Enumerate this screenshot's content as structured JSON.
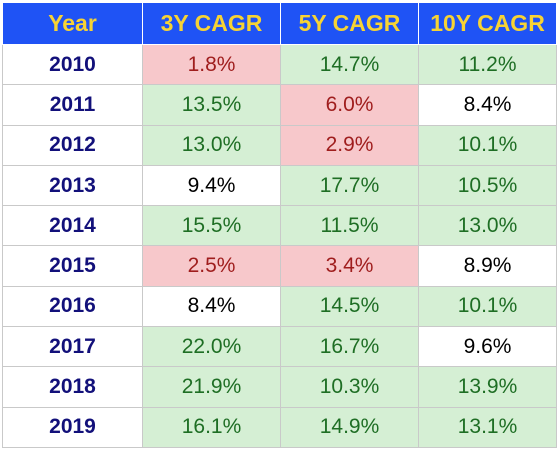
{
  "chart_data": {
    "type": "table",
    "columns": [
      "Year",
      "3Y CAGR",
      "5Y CAGR",
      "10Y CAGR"
    ],
    "rows": [
      {
        "year": "2010",
        "cells": [
          {
            "text": "1.8%",
            "value": 1.8,
            "status": "red"
          },
          {
            "text": "14.7%",
            "value": 14.7,
            "status": "green"
          },
          {
            "text": "11.2%",
            "value": 11.2,
            "status": "green"
          }
        ]
      },
      {
        "year": "2011",
        "cells": [
          {
            "text": "13.5%",
            "value": 13.5,
            "status": "green"
          },
          {
            "text": "6.0%",
            "value": 6.0,
            "status": "red"
          },
          {
            "text": "8.4%",
            "value": 8.4,
            "status": "neutral"
          }
        ]
      },
      {
        "year": "2012",
        "cells": [
          {
            "text": "13.0%",
            "value": 13.0,
            "status": "green"
          },
          {
            "text": "2.9%",
            "value": 2.9,
            "status": "red"
          },
          {
            "text": "10.1%",
            "value": 10.1,
            "status": "green"
          }
        ]
      },
      {
        "year": "2013",
        "cells": [
          {
            "text": "9.4%",
            "value": 9.4,
            "status": "neutral"
          },
          {
            "text": "17.7%",
            "value": 17.7,
            "status": "green"
          },
          {
            "text": "10.5%",
            "value": 10.5,
            "status": "green"
          }
        ]
      },
      {
        "year": "2014",
        "cells": [
          {
            "text": "15.5%",
            "value": 15.5,
            "status": "green"
          },
          {
            "text": "11.5%",
            "value": 11.5,
            "status": "green"
          },
          {
            "text": "13.0%",
            "value": 13.0,
            "status": "green"
          }
        ]
      },
      {
        "year": "2015",
        "cells": [
          {
            "text": "2.5%",
            "value": 2.5,
            "status": "red"
          },
          {
            "text": "3.4%",
            "value": 3.4,
            "status": "red"
          },
          {
            "text": "8.9%",
            "value": 8.9,
            "status": "neutral"
          }
        ]
      },
      {
        "year": "2016",
        "cells": [
          {
            "text": "8.4%",
            "value": 8.4,
            "status": "neutral"
          },
          {
            "text": "14.5%",
            "value": 14.5,
            "status": "green"
          },
          {
            "text": "10.1%",
            "value": 10.1,
            "status": "green"
          }
        ]
      },
      {
        "year": "2017",
        "cells": [
          {
            "text": "22.0%",
            "value": 22.0,
            "status": "green"
          },
          {
            "text": "16.7%",
            "value": 16.7,
            "status": "green"
          },
          {
            "text": "9.6%",
            "value": 9.6,
            "status": "neutral"
          }
        ]
      },
      {
        "year": "2018",
        "cells": [
          {
            "text": "21.9%",
            "value": 21.9,
            "status": "green"
          },
          {
            "text": "10.3%",
            "value": 10.3,
            "status": "green"
          },
          {
            "text": "13.9%",
            "value": 13.9,
            "status": "green"
          }
        ]
      },
      {
        "year": "2019",
        "cells": [
          {
            "text": "16.1%",
            "value": 16.1,
            "status": "green"
          },
          {
            "text": "14.9%",
            "value": 14.9,
            "status": "green"
          },
          {
            "text": "13.1%",
            "value": 13.1,
            "status": "green"
          }
        ]
      }
    ]
  },
  "colors": {
    "header_background": "#1f53f5",
    "header_text": "#f7d334",
    "year_text": "#12107a",
    "green_fill": "#d5efd4",
    "green_text": "#1e6e24",
    "red_fill": "#f7c8cb",
    "red_text": "#9f1d1d",
    "neutral_text": "#000000"
  }
}
